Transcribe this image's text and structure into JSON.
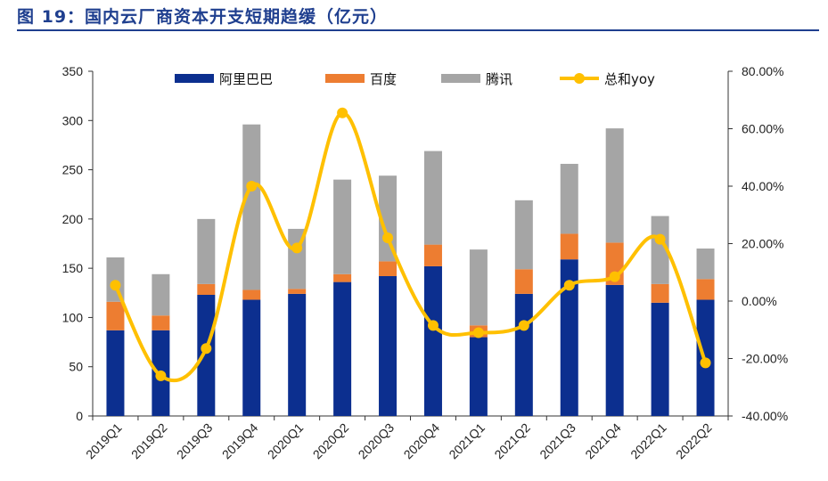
{
  "title": "图 19：国内云厂商资本开支短期趋缓（亿元）",
  "chart_data": {
    "type": "bar",
    "stacked": true,
    "title": "图 19：国内云厂商资本开支短期趋缓（亿元）",
    "unit": "亿元",
    "categories": [
      "2019Q1",
      "2019Q2",
      "2019Q3",
      "2019Q4",
      "2020Q1",
      "2020Q2",
      "2020Q3",
      "2020Q4",
      "2021Q1",
      "2021Q2",
      "2021Q3",
      "2021Q4",
      "2022Q1",
      "2022Q2"
    ],
    "series": [
      {
        "name": "阿里巴巴",
        "type": "bar",
        "color": "#0c2f8f",
        "values": [
          87,
          87,
          123,
          118,
          124,
          136,
          142,
          152,
          80,
          124,
          159,
          133,
          115,
          118
        ]
      },
      {
        "name": "百度",
        "type": "bar",
        "color": "#ed7d31",
        "values": [
          29,
          15,
          11,
          10,
          5,
          8,
          15,
          22,
          12,
          25,
          26,
          43,
          19,
          21
        ]
      },
      {
        "name": "腾讯",
        "type": "bar",
        "color": "#a5a5a5",
        "values": [
          45,
          42,
          66,
          168,
          61,
          96,
          87,
          95,
          77,
          70,
          71,
          116,
          69,
          31
        ]
      },
      {
        "name": "总和yoy",
        "type": "line",
        "axis": "right",
        "color": "#ffc000",
        "values": [
          5.5,
          -26.0,
          -16.5,
          40.0,
          18.5,
          65.5,
          22.0,
          -8.5,
          -11.0,
          -8.5,
          5.5,
          8.5,
          21.5,
          -21.5
        ]
      }
    ],
    "y_left": {
      "min": 0,
      "max": 350,
      "step": 50,
      "ticks": [
        "0",
        "50",
        "100",
        "150",
        "200",
        "250",
        "300",
        "350"
      ]
    },
    "y_right": {
      "min": -40,
      "max": 80,
      "step": 20,
      "ticks": [
        "-40.00%",
        "-20.00%",
        "0.00%",
        "20.00%",
        "40.00%",
        "60.00%",
        "80.00%"
      ]
    },
    "legend_position": "top",
    "grid": false
  }
}
